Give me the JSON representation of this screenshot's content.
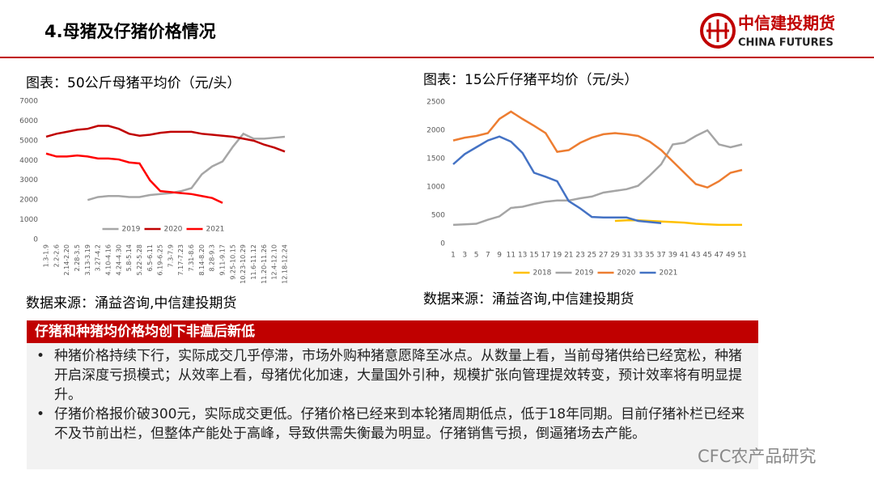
{
  "header": {
    "title": "4.母猪及仔猪价格情况",
    "logo_cn": "中信建投期货",
    "logo_en": "CHINA FUTURES"
  },
  "chart_data": [
    {
      "type": "line",
      "title": "图表：50公斤母猪平均价（元/头）",
      "categories": [
        "1.3-1.9",
        "2.2-2.6",
        "2.14-2.20",
        "2.28-3.5",
        "3.13-3.19",
        "3.27-4.2",
        "4.10-4.16",
        "4.24-4.30",
        "5.8-5.14",
        "5.22-5.28",
        "6.5-6.11",
        "6.19-6.25",
        "7.3-7.9",
        "7.17-7.23",
        "7.31-8.6",
        "8.14-8.20",
        "8.28-9.3",
        "9.11-9.17",
        "9.25-10.15",
        "10.23-10.29",
        "11.6-11.12",
        "11.20-11.26",
        "12.4-12.10",
        "12.18-12.24"
      ],
      "series": [
        {
          "name": "2019",
          "color": "#a6a6a6",
          "values": [
            null,
            null,
            null,
            null,
            2000,
            2150,
            2200,
            2200,
            2150,
            2150,
            2250,
            2300,
            2350,
            2450,
            2600,
            3300,
            3700,
            3950,
            4700,
            5350,
            5100,
            5100,
            5150,
            5200
          ]
        },
        {
          "name": "2020",
          "color": "#c00000",
          "values": [
            5200,
            5350,
            5450,
            5550,
            5600,
            5750,
            5750,
            5600,
            5350,
            5250,
            5300,
            5400,
            5450,
            5450,
            5450,
            5350,
            5300,
            5250,
            5200,
            5100,
            5000,
            4800,
            4650,
            4450
          ]
        },
        {
          "name": "2021",
          "color": "#ff0000",
          "values": [
            4350,
            4200,
            4200,
            4250,
            4200,
            4100,
            4100,
            4050,
            3900,
            3850,
            3000,
            2450,
            2400,
            2350,
            2300,
            2200,
            2100,
            1850,
            null,
            null,
            null,
            null,
            null,
            null
          ]
        }
      ],
      "ylim": [
        0,
        7000
      ],
      "yticks": [
        0,
        1000,
        2000,
        3000,
        4000,
        5000,
        6000,
        7000
      ],
      "legend": "bottom",
      "source": "数据来源：涌益咨询,中信建投期货"
    },
    {
      "type": "line",
      "title": "图表：15公斤仔猪平均价（元/头）",
      "x": [
        1,
        3,
        5,
        7,
        9,
        11,
        13,
        15,
        17,
        19,
        21,
        23,
        25,
        27,
        29,
        31,
        33,
        35,
        37,
        39,
        41,
        43,
        45,
        47,
        49,
        51
      ],
      "xlim": [
        1,
        51
      ],
      "xticks": [
        1,
        3,
        5,
        7,
        9,
        11,
        13,
        15,
        17,
        19,
        21,
        23,
        25,
        27,
        29,
        31,
        33,
        35,
        37,
        39,
        41,
        43,
        45,
        47,
        49,
        51
      ],
      "series": [
        {
          "name": "2018",
          "color": "#ffc000",
          "values": [
            null,
            null,
            null,
            null,
            null,
            null,
            null,
            null,
            null,
            null,
            null,
            null,
            null,
            null,
            400,
            410,
            410,
            400,
            390,
            380,
            370,
            350,
            340,
            330,
            330,
            330
          ]
        },
        {
          "name": "2019",
          "color": "#a5a5a5",
          "values": [
            330,
            340,
            350,
            420,
            480,
            630,
            650,
            700,
            740,
            760,
            760,
            800,
            830,
            900,
            930,
            960,
            1020,
            1200,
            1400,
            1750,
            1780,
            1900,
            2000,
            1750,
            1700,
            1750
          ]
        },
        {
          "name": "2020",
          "color": "#ed7d31",
          "values": [
            1820,
            1870,
            1900,
            1950,
            2200,
            2330,
            2200,
            2080,
            1950,
            1620,
            1650,
            1780,
            1870,
            1930,
            1950,
            1930,
            1900,
            1800,
            1650,
            1450,
            1250,
            1050,
            990,
            1100,
            1250,
            1300
          ]
        },
        {
          "name": "2021",
          "color": "#4472c4",
          "values": [
            1400,
            1580,
            1700,
            1820,
            1890,
            1800,
            1600,
            1250,
            1180,
            1100,
            750,
            620,
            470,
            460,
            460,
            460,
            400,
            380,
            360,
            null,
            null,
            null,
            null,
            null,
            null,
            null
          ]
        }
      ],
      "ylim": [
        0,
        2500
      ],
      "yticks": [
        0,
        500,
        1000,
        1500,
        2000,
        2500
      ],
      "legend": "bottom",
      "source": "数据来源：涌益咨询,中信建投期货"
    }
  ],
  "box": {
    "title": "仔猪和种猪均价格均创下非瘟后新低",
    "bullets": [
      "种猪价格持续下行，实际成交几乎停滞，市场外购种猪意愿降至冰点。从数量上看，当前母猪供给已经宽松，种猪开启深度亏损模式；从效率上看，母猪优化加速，大量国外引种，规模扩张向管理提效转变，预计效率将有明显提升。",
      "仔猪价格报价破300元，实际成交更低。仔猪价格已经来到本轮猪周期低点，低于18年同期。目前仔猪补栏已经来不及节前出栏，但整体产能处于高峰，导致供需失衡最为明显。仔猪销售亏损，倒逼猪场去产能。"
    ]
  },
  "watermark": "CFC农产品研究"
}
